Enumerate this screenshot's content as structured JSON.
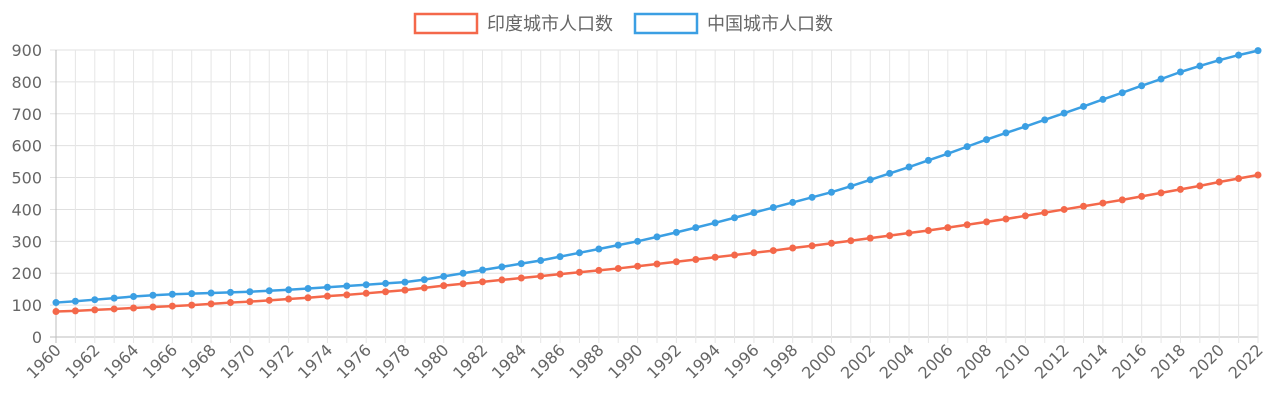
{
  "chart_data": {
    "type": "line",
    "title": "",
    "xlabel": "",
    "ylabel": "",
    "ylim": [
      0,
      900
    ],
    "yticks": [
      0,
      100,
      200,
      300,
      400,
      500,
      600,
      700,
      800,
      900
    ],
    "x": [
      1960,
      1961,
      1962,
      1963,
      1964,
      1965,
      1966,
      1967,
      1968,
      1969,
      1970,
      1971,
      1972,
      1973,
      1974,
      1975,
      1976,
      1977,
      1978,
      1979,
      1980,
      1981,
      1982,
      1983,
      1984,
      1985,
      1986,
      1987,
      1988,
      1989,
      1990,
      1991,
      1992,
      1993,
      1994,
      1995,
      1996,
      1997,
      1998,
      1999,
      2000,
      2001,
      2002,
      2003,
      2004,
      2005,
      2006,
      2007,
      2008,
      2009,
      2010,
      2011,
      2012,
      2013,
      2014,
      2015,
      2016,
      2017,
      2018,
      2019,
      2020,
      2021,
      2022
    ],
    "xtick_labels": [
      "1960",
      "1962",
      "1964",
      "1966",
      "1968",
      "1970",
      "1972",
      "1974",
      "1976",
      "1978",
      "1980",
      "1982",
      "1984",
      "1986",
      "1988",
      "1990",
      "1992",
      "1994",
      "1996",
      "1998",
      "2000",
      "2002",
      "2004",
      "2006",
      "2008",
      "2010",
      "2012",
      "2014",
      "2016",
      "2018",
      "2020",
      "2022"
    ],
    "grid": true,
    "legend_position": "top-center",
    "series": [
      {
        "name": "印度城市人口数",
        "color": "#f4684a",
        "values": [
          80,
          82,
          85,
          88,
          91,
          94,
          97,
          100,
          104,
          108,
          111,
          115,
          119,
          123,
          128,
          132,
          137,
          142,
          147,
          154,
          161,
          167,
          173,
          179,
          185,
          191,
          197,
          203,
          209,
          215,
          222,
          229,
          236,
          243,
          250,
          257,
          264,
          271,
          279,
          286,
          294,
          302,
          310,
          318,
          326,
          334,
          343,
          352,
          361,
          370,
          380,
          390,
          400,
          410,
          420,
          430,
          441,
          452,
          463,
          474,
          486,
          497,
          508
        ]
      },
      {
        "name": "中国城市人口数",
        "color": "#3b9fe3",
        "values": [
          108,
          112,
          117,
          122,
          127,
          131,
          134,
          136,
          138,
          140,
          142,
          145,
          148,
          152,
          156,
          160,
          164,
          168,
          172,
          180,
          190,
          200,
          210,
          220,
          230,
          240,
          252,
          264,
          276,
          288,
          300,
          314,
          328,
          343,
          358,
          374,
          390,
          406,
          422,
          438,
          454,
          473,
          493,
          513,
          533,
          554,
          575,
          597,
          619,
          640,
          660,
          681,
          702,
          723,
          745,
          766,
          788,
          809,
          831,
          850,
          868,
          884,
          898
        ]
      }
    ]
  }
}
